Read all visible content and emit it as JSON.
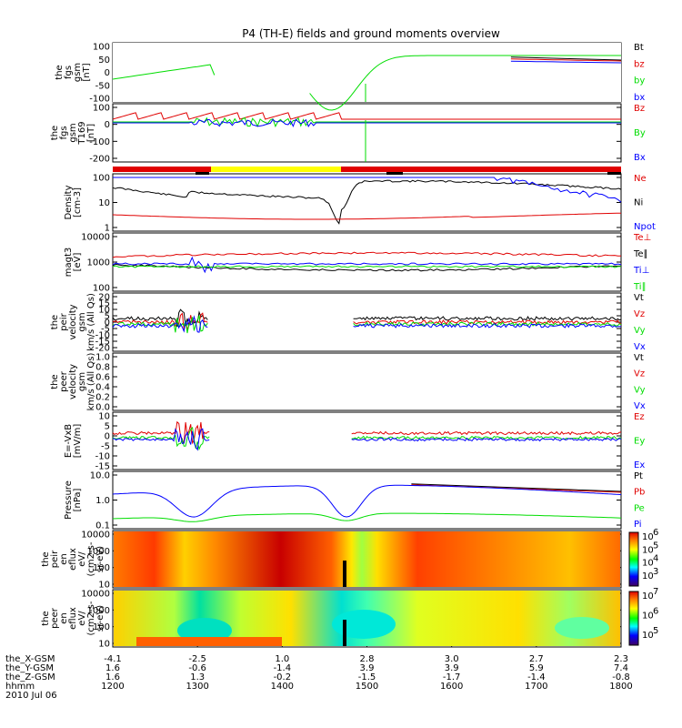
{
  "title": "P4 (TH-E) fields and ground moments overview",
  "colors": {
    "black": "#000000",
    "red": "#e00000",
    "green": "#00dd00",
    "blue": "#0000ff",
    "yellow": "#ffff00"
  },
  "chart_data": {
    "type": "line",
    "x_axis": {
      "ticks": [
        "1200",
        "1300",
        "1400",
        "1500",
        "1600",
        "1700",
        "1800"
      ],
      "rows": [
        {
          "label": "the_X-GSM",
          "values": [
            "-4.1",
            "-2.5",
            "1.0",
            "2.8",
            "3.0",
            "2.7",
            "2.3"
          ]
        },
        {
          "label": "the_Y-GSM",
          "values": [
            "1.6",
            "-0.6",
            "-1.4",
            "3.9",
            "3.9",
            "5.9",
            "7.4"
          ]
        },
        {
          "label": "the_Z-GSM",
          "values": [
            "1.6",
            "1.3",
            "-0.2",
            "-1.5",
            "-1.7",
            "-1.4",
            "-0.8"
          ]
        },
        {
          "label": "hhmm",
          "values": [
            "1200",
            "1300",
            "1400",
            "1500",
            "1600",
            "1700",
            "1800"
          ]
        }
      ],
      "date": "2010 Jul 06"
    },
    "panels": [
      {
        "id": "fgs",
        "ylabel": [
          "the",
          "fgs",
          "gsm",
          "[nT]"
        ],
        "ticks": [
          "100",
          "50",
          "0",
          "-50",
          "-100"
        ],
        "legend": [
          "Bt",
          "bz",
          "by",
          "bx"
        ]
      },
      {
        "id": "fgs-t169",
        "ylabel": [
          "the",
          "fgs",
          "gsm",
          "T169",
          "[nT]"
        ],
        "ticks": [
          "100",
          "0",
          "-100",
          "-200"
        ],
        "legend": [
          "Bz",
          "By",
          "Bx"
        ]
      },
      {
        "id": "bar"
      },
      {
        "id": "density",
        "ylabel": [
          "Density",
          "[cm-3]"
        ],
        "ticks": [
          "100",
          "10",
          "1"
        ],
        "legend": [
          "Ne",
          "Ni",
          "Npot"
        ]
      },
      {
        "id": "temp",
        "ylabel": [
          "magt3",
          "[eV]"
        ],
        "ticks": [
          "10000",
          "1000",
          "100"
        ],
        "legend": [
          "Te⊥",
          "Te∥",
          "Ti⊥",
          "Ti∥"
        ]
      },
      {
        "id": "peir-vel",
        "ylabel": [
          "the",
          "peir",
          "velocity",
          "gsm",
          "km/s (All Qs)"
        ],
        "ticks": [
          "20",
          "15",
          "10",
          "5",
          "0",
          "-5",
          "-10",
          "-15",
          "-20"
        ],
        "legend": [
          "Vt",
          "Vz",
          "Vy",
          "Vx"
        ]
      },
      {
        "id": "peer-vel",
        "ylabel": [
          "the",
          "peer",
          "velocity",
          "gsm",
          "km/s (All Qs)"
        ],
        "ticks": [
          "1.0",
          "0.8",
          "0.6",
          "0.4",
          "0.2",
          "0.0"
        ],
        "legend": [
          "Vt",
          "Vz",
          "Vy",
          "Vx"
        ]
      },
      {
        "id": "efield",
        "ylabel": [
          "E=-VxB",
          "[mV/m]"
        ],
        "ticks": [
          "10",
          "5",
          "0",
          "-5",
          "-10",
          "-15"
        ],
        "legend": [
          "Ez",
          "Ey",
          "Ex"
        ]
      },
      {
        "id": "pressure",
        "ylabel": [
          "Pressure",
          "[nPa]"
        ],
        "ticks": [
          "10.0",
          "1.0",
          "0.1"
        ],
        "legend": [
          "Pt",
          "Pb",
          "Pe",
          "Pi"
        ]
      },
      {
        "id": "peir-spec",
        "ylabel": [
          "the",
          "peir",
          "en",
          "eflux",
          "eV/",
          "(cm2-s-",
          "sr-eV)"
        ],
        "ticks": [
          "10000",
          "1000",
          "100",
          "10"
        ],
        "colorbar": [
          "10",
          "10",
          "10",
          "10"
        ],
        "colorbar_exp": [
          "6",
          "5",
          "4",
          "3"
        ]
      },
      {
        "id": "peer-spec",
        "ylabel": [
          "the",
          "peer",
          "en",
          "eflux",
          "eV/",
          "(cm2-s-",
          "sr-eV)"
        ],
        "ticks": [
          "10000",
          "1000",
          "100",
          "10"
        ],
        "colorbar": [
          "10",
          "10",
          "10"
        ],
        "colorbar_exp": [
          "7",
          "6",
          "5"
        ]
      }
    ]
  }
}
